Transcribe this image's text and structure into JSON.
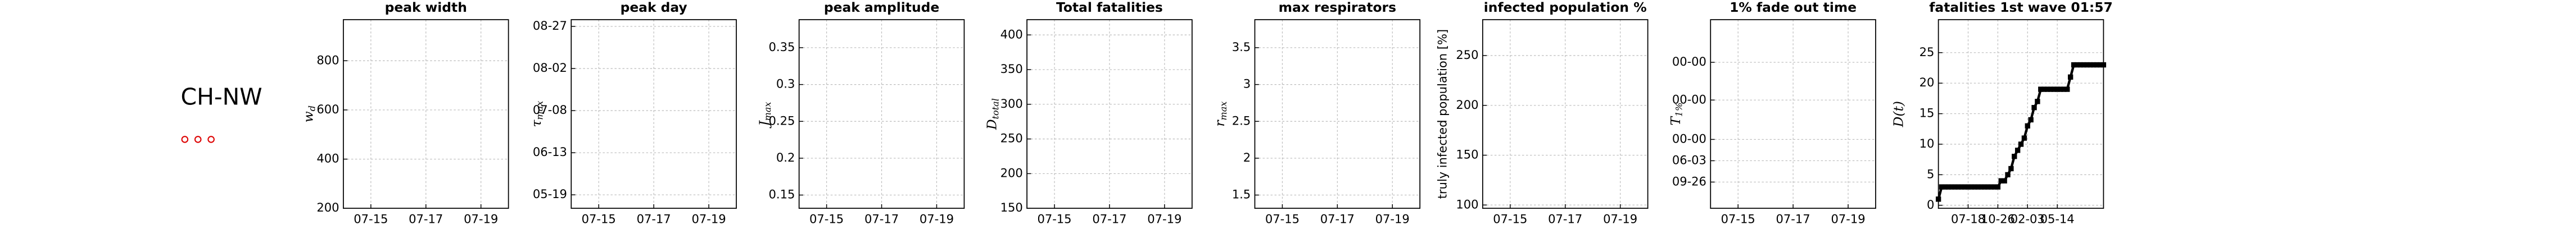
{
  "region_label": "CH-NW",
  "chart_data": [
    {
      "type": "line",
      "title": "peak width",
      "ylabel": "w",
      "ylabel_sub": "d",
      "grid": true,
      "xlim": [
        14,
        20
      ],
      "xticks": [
        {
          "value": 15,
          "label": "07-15"
        },
        {
          "value": 17,
          "label": "07-17"
        },
        {
          "value": 19,
          "label": "07-19"
        }
      ],
      "ylim": [
        200,
        967
      ],
      "yticks": [
        200,
        400,
        600,
        800
      ]
    },
    {
      "type": "line",
      "title": "peak day",
      "ylabel": "τ",
      "ylabel_sub": "max",
      "grid": true,
      "xlim": [
        14,
        20
      ],
      "xticks": [
        {
          "value": 15,
          "label": "07-15"
        },
        {
          "value": 17,
          "label": "07-17"
        },
        {
          "value": 19,
          "label": "07-19"
        }
      ],
      "ylim": [
        131,
        243
      ],
      "yticks": [
        {
          "value": 139,
          "label": "05-19"
        },
        {
          "value": 164,
          "label": "06-13"
        },
        {
          "value": 189,
          "label": "07-08"
        },
        {
          "value": 214,
          "label": "08-02"
        },
        {
          "value": 239,
          "label": "08-27"
        }
      ]
    },
    {
      "type": "line",
      "title": "peak amplitude",
      "ylabel": "J",
      "ylabel_sub": "max",
      "grid": true,
      "xlim": [
        14,
        20
      ],
      "xticks": [
        {
          "value": 15,
          "label": "07-15"
        },
        {
          "value": 17,
          "label": "07-17"
        },
        {
          "value": 19,
          "label": "07-19"
        }
      ],
      "ylim": [
        0.132,
        0.388
      ],
      "yticks": [
        0.15,
        0.2,
        0.25,
        0.3,
        0.35
      ]
    },
    {
      "type": "line",
      "title": "Total fatalities",
      "ylabel": "D",
      "ylabel_sub": "total",
      "grid": true,
      "xlim": [
        14,
        20
      ],
      "xticks": [
        {
          "value": 15,
          "label": "07-15"
        },
        {
          "value": 17,
          "label": "07-17"
        },
        {
          "value": 19,
          "label": "07-19"
        }
      ],
      "ylim": [
        150,
        422
      ],
      "yticks": [
        150,
        200,
        250,
        300,
        350,
        400
      ]
    },
    {
      "type": "line",
      "title": "max respirators",
      "ylabel": "r",
      "ylabel_sub": "max",
      "grid": true,
      "xlim": [
        14,
        20
      ],
      "xticks": [
        {
          "value": 15,
          "label": "07-15"
        },
        {
          "value": 17,
          "label": "07-17"
        },
        {
          "value": 19,
          "label": "07-19"
        }
      ],
      "ylim": [
        1.32,
        3.88
      ],
      "yticks": [
        1.5,
        2,
        2.5,
        3,
        3.5
      ]
    },
    {
      "type": "line",
      "title": "infected population %",
      "ylabel": "truly infected population [%]",
      "grid": true,
      "xlim": [
        14,
        20
      ],
      "xticks": [
        {
          "value": 15,
          "label": "07-15"
        },
        {
          "value": 17,
          "label": "07-17"
        },
        {
          "value": 19,
          "label": "07-19"
        }
      ],
      "ylim": [
        96.7,
        286
      ],
      "yticks": [
        100,
        150,
        200,
        250
      ]
    },
    {
      "type": "line",
      "title": "1% fade out time",
      "ylabel": "T",
      "ylabel_sub": "1%",
      "grid": true,
      "xlim": [
        14,
        20
      ],
      "xticks": [
        {
          "value": 15,
          "label": "07-15"
        },
        {
          "value": 17,
          "label": "07-17"
        },
        {
          "value": 19,
          "label": "07-19"
        }
      ],
      "ylim": [
        0,
        115
      ],
      "yticks": [
        {
          "value": 16,
          "label": "09-26"
        },
        {
          "value": 29,
          "label": "06-03"
        },
        {
          "value": 42,
          "label": "00-00"
        },
        {
          "value": 66,
          "label": "00-00"
        },
        {
          "value": 89,
          "label": "00-00"
        }
      ]
    },
    {
      "type": "line",
      "title": "fatalities 1st wave 01:57",
      "ylabel": "D(t)",
      "grid": true,
      "xlim": [
        0,
        100
      ],
      "xticks": [
        {
          "value": 18,
          "label": "07-18"
        },
        {
          "value": 36,
          "label": "10-26"
        },
        {
          "value": 54,
          "label": "02-03"
        },
        {
          "value": 72,
          "label": "05-14"
        }
      ],
      "ylim": [
        -0.5,
        30.4
      ],
      "yticks": [
        0,
        5,
        10,
        15,
        20,
        25
      ],
      "series": [
        {
          "color": "#000000",
          "x": [
            0,
            2,
            4,
            6,
            8,
            10,
            12,
            14,
            16,
            18,
            20,
            22,
            24,
            26,
            28,
            30,
            32,
            34,
            36,
            38,
            40,
            42,
            44,
            46,
            48,
            50,
            52,
            54,
            56,
            58,
            60,
            62,
            64,
            66,
            68,
            70,
            72,
            74,
            76,
            78,
            80,
            82,
            84,
            86,
            88,
            90,
            92,
            94,
            96,
            98,
            100
          ],
          "values": [
            1,
            3,
            3,
            3,
            3,
            3,
            3,
            3,
            3,
            3,
            3,
            3,
            3,
            3,
            3,
            3,
            3,
            3,
            3,
            4,
            4,
            5,
            6,
            8,
            9,
            10,
            11,
            13,
            14,
            16,
            17,
            19,
            19,
            19,
            19,
            19,
            19,
            19,
            19,
            19,
            21,
            23,
            23,
            23,
            23,
            23,
            23,
            23,
            23,
            23,
            23
          ]
        }
      ]
    }
  ]
}
